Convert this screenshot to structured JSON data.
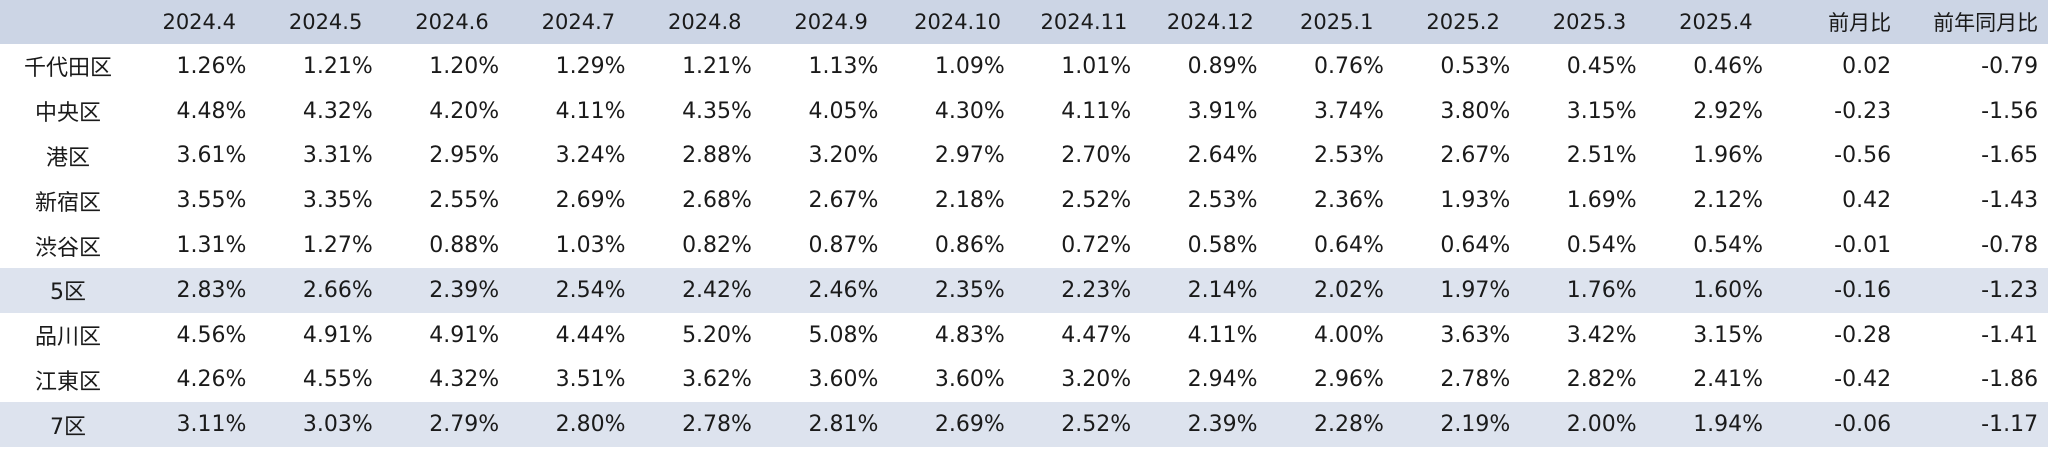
{
  "chart_data": {
    "type": "table",
    "columns": [
      "",
      "2024.4",
      "2024.5",
      "2024.6",
      "2024.7",
      "2024.8",
      "2024.9",
      "2024.10",
      "2024.11",
      "2024.12",
      "2025.1",
      "2025.2",
      "2025.3",
      "2025.4",
      "前月比",
      "前年同月比"
    ],
    "rows": [
      {
        "label": "千代田区",
        "subtotal": false,
        "values": [
          "1.26%",
          "1.21%",
          "1.20%",
          "1.29%",
          "1.21%",
          "1.13%",
          "1.09%",
          "1.01%",
          "0.89%",
          "0.76%",
          "0.53%",
          "0.45%",
          "0.46%"
        ],
        "mom": "0.02",
        "yoy": "-0.79"
      },
      {
        "label": "中央区",
        "subtotal": false,
        "values": [
          "4.48%",
          "4.32%",
          "4.20%",
          "4.11%",
          "4.35%",
          "4.05%",
          "4.30%",
          "4.11%",
          "3.91%",
          "3.74%",
          "3.80%",
          "3.15%",
          "2.92%"
        ],
        "mom": "-0.23",
        "yoy": "-1.56"
      },
      {
        "label": "港区",
        "subtotal": false,
        "values": [
          "3.61%",
          "3.31%",
          "2.95%",
          "3.24%",
          "2.88%",
          "3.20%",
          "2.97%",
          "2.70%",
          "2.64%",
          "2.53%",
          "2.67%",
          "2.51%",
          "1.96%"
        ],
        "mom": "-0.56",
        "yoy": "-1.65"
      },
      {
        "label": "新宿区",
        "subtotal": false,
        "values": [
          "3.55%",
          "3.35%",
          "2.55%",
          "2.69%",
          "2.68%",
          "2.67%",
          "2.18%",
          "2.52%",
          "2.53%",
          "2.36%",
          "1.93%",
          "1.69%",
          "2.12%"
        ],
        "mom": "0.42",
        "yoy": "-1.43"
      },
      {
        "label": "渋谷区",
        "subtotal": false,
        "values": [
          "1.31%",
          "1.27%",
          "0.88%",
          "1.03%",
          "0.82%",
          "0.87%",
          "0.86%",
          "0.72%",
          "0.58%",
          "0.64%",
          "0.64%",
          "0.54%",
          "0.54%"
        ],
        "mom": "-0.01",
        "yoy": "-0.78"
      },
      {
        "label": "5区",
        "subtotal": true,
        "values": [
          "2.83%",
          "2.66%",
          "2.39%",
          "2.54%",
          "2.42%",
          "2.46%",
          "2.35%",
          "2.23%",
          "2.14%",
          "2.02%",
          "1.97%",
          "1.76%",
          "1.60%"
        ],
        "mom": "-0.16",
        "yoy": "-1.23"
      },
      {
        "label": "品川区",
        "subtotal": false,
        "values": [
          "4.56%",
          "4.91%",
          "4.91%",
          "4.44%",
          "5.20%",
          "5.08%",
          "4.83%",
          "4.47%",
          "4.11%",
          "4.00%",
          "3.63%",
          "3.42%",
          "3.15%"
        ],
        "mom": "-0.28",
        "yoy": "-1.41"
      },
      {
        "label": "江東区",
        "subtotal": false,
        "values": [
          "4.26%",
          "4.55%",
          "4.32%",
          "3.51%",
          "3.62%",
          "3.60%",
          "3.60%",
          "3.20%",
          "2.94%",
          "2.96%",
          "2.78%",
          "2.82%",
          "2.41%"
        ],
        "mom": "-0.42",
        "yoy": "-1.86"
      },
      {
        "label": "7区",
        "subtotal": true,
        "values": [
          "3.11%",
          "3.03%",
          "2.79%",
          "2.80%",
          "2.78%",
          "2.81%",
          "2.69%",
          "2.52%",
          "2.39%",
          "2.28%",
          "2.19%",
          "2.00%",
          "1.94%"
        ],
        "mom": "-0.06",
        "yoy": "-1.17"
      }
    ]
  },
  "colors": {
    "header_bg": "#ccd5e5",
    "subtotal_bg": "#dde3ee",
    "text": "#1a1a1a"
  }
}
